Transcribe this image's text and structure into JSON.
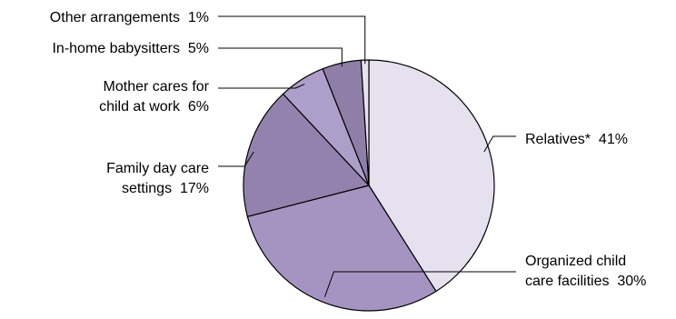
{
  "chart_data": {
    "type": "pie",
    "title": "",
    "start_angle_deg": 90,
    "direction": "clockwise",
    "slices": [
      {
        "name": "Relatives*",
        "value": 41,
        "pct_label": "41%",
        "color": "#e6e1ef",
        "label_lines": [
          {
            "text": "Relatives*",
            "pct": "41%"
          }
        ]
      },
      {
        "name": "Organized child care facilities",
        "value": 30,
        "pct_label": "30%",
        "color": "#a594c2",
        "label_lines": [
          {
            "text": "Organized child",
            "pct": ""
          },
          {
            "text": "care facilities",
            "pct": "30%"
          }
        ]
      },
      {
        "name": "Family day care settings",
        "value": 17,
        "pct_label": "17%",
        "color": "#9482ae",
        "label_lines": [
          {
            "text": "Family day care",
            "pct": ""
          },
          {
            "text": "settings",
            "pct": "17%"
          }
        ]
      },
      {
        "name": "Mother cares for child at work",
        "value": 6,
        "pct_label": "6%",
        "color": "#ad9fca",
        "label_lines": [
          {
            "text": "Mother cares for",
            "pct": ""
          },
          {
            "text": "child at work",
            "pct": "6%"
          }
        ]
      },
      {
        "name": "In-home babysitters",
        "value": 5,
        "pct_label": "5%",
        "color": "#8f7fa8",
        "label_lines": [
          {
            "text": "In-home babysitters",
            "pct": "5%"
          }
        ]
      },
      {
        "name": "Other arrangements",
        "value": 1,
        "pct_label": "1%",
        "color": "#e6e1ef",
        "label_lines": [
          {
            "text": "Other arrangements",
            "pct": "1%"
          }
        ]
      }
    ]
  }
}
